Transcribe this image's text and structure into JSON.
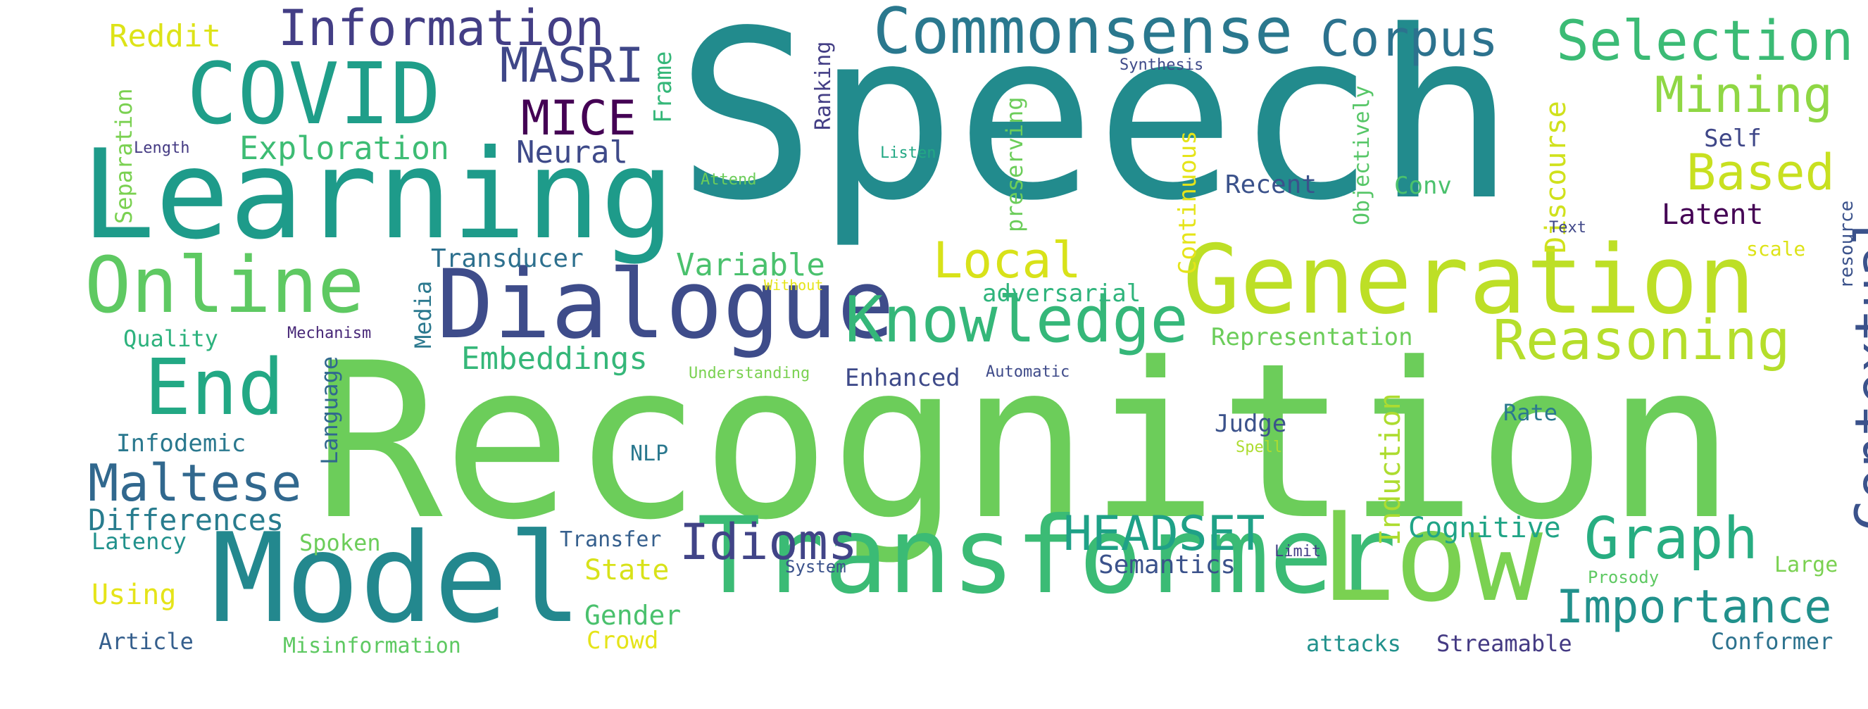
{
  "words": [
    {
      "t": "Speech",
      "c": "#228b8d",
      "v": false
    },
    {
      "t": "Recognition",
      "c": "#6ccd5a",
      "v": false
    },
    {
      "t": "Learning",
      "c": "#1e9b8a",
      "v": false
    },
    {
      "t": "Model",
      "c": "#23888e",
      "v": false
    },
    {
      "t": "Transformer",
      "c": "#3bbb75",
      "v": false
    },
    {
      "t": "Low",
      "c": "#7ad151",
      "v": false
    },
    {
      "t": "Generation",
      "c": "#bddf26",
      "v": false
    },
    {
      "t": "Dialogue",
      "c": "#3e4c8a",
      "v": false
    },
    {
      "t": "Online",
      "c": "#5ec962",
      "v": false
    },
    {
      "t": "COVID",
      "c": "#1f9e89",
      "v": false
    },
    {
      "t": "Commonsense",
      "c": "#2a788e",
      "v": false
    },
    {
      "t": "Knowledge",
      "c": "#35b779",
      "v": false
    },
    {
      "t": "End",
      "c": "#22a884",
      "v": false
    },
    {
      "t": "Information",
      "c": "#433e85",
      "v": false
    },
    {
      "t": "Selection",
      "c": "#3bbb75",
      "v": false
    },
    {
      "t": "Corpus",
      "c": "#2c728e",
      "v": false
    },
    {
      "t": "Mining",
      "c": "#8fd744",
      "v": false
    },
    {
      "t": "Reasoning",
      "c": "#b5de2b",
      "v": false
    },
    {
      "t": "Based",
      "c": "#c8e020",
      "v": false
    },
    {
      "t": "Contextual",
      "c": "#3b528b",
      "v": true
    },
    {
      "t": "Graph",
      "c": "#27ad81",
      "v": false
    },
    {
      "t": "Importance",
      "c": "#21918c",
      "v": false
    },
    {
      "t": "Maltese",
      "c": "#31688e",
      "v": false
    },
    {
      "t": "Idioms",
      "c": "#414487",
      "v": false
    },
    {
      "t": "HEADSET",
      "c": "#1fa187",
      "v": false
    },
    {
      "t": "Local",
      "c": "#d8e219",
      "v": false
    },
    {
      "t": "MASRI",
      "c": "#3f4788",
      "v": false
    },
    {
      "t": "MICE",
      "c": "#440154",
      "v": false
    },
    {
      "t": "Exploration",
      "c": "#3dbc74",
      "v": false
    },
    {
      "t": "Neural",
      "c": "#3e4a89",
      "v": false
    },
    {
      "t": "Embeddings",
      "c": "#35b779",
      "v": false
    },
    {
      "t": "Variable",
      "c": "#4ac16d",
      "v": false
    },
    {
      "t": "Transducer",
      "c": "#2d708e",
      "v": false
    },
    {
      "t": "Differences",
      "c": "#287c8e",
      "v": false
    },
    {
      "t": "Reddit",
      "c": "#dde318",
      "v": false
    },
    {
      "t": "Latent",
      "c": "#440154",
      "v": false
    },
    {
      "t": "Self",
      "c": "#3f4788",
      "v": false
    },
    {
      "t": "Recent",
      "c": "#3b528b",
      "v": false
    },
    {
      "t": "Conv",
      "c": "#4ac16d",
      "v": false
    },
    {
      "t": "Discourse",
      "c": "#d0e11c",
      "v": true
    },
    {
      "t": "Continuous",
      "c": "#e5e419",
      "v": true
    },
    {
      "t": "Objectively",
      "c": "#56c667",
      "v": true
    },
    {
      "t": "preserving",
      "c": "#6ccd5a",
      "v": true
    },
    {
      "t": "Ranking",
      "c": "#433e85",
      "v": true
    },
    {
      "t": "Frame",
      "c": "#35b779",
      "v": true
    },
    {
      "t": "Separation",
      "c": "#7ad151",
      "v": true
    },
    {
      "t": "Induction",
      "c": "#addc30",
      "v": true
    },
    {
      "t": "Language",
      "c": "#31688e",
      "v": true
    },
    {
      "t": "Media",
      "c": "#2a788e",
      "v": true
    },
    {
      "t": "resource",
      "c": "#3b528b",
      "v": true
    },
    {
      "t": "Cognitive",
      "c": "#20a486",
      "v": false
    },
    {
      "t": "State",
      "c": "#d8e219",
      "v": false
    },
    {
      "t": "Gender",
      "c": "#4ac16d",
      "v": false
    },
    {
      "t": "Crowd",
      "c": "#e5e419",
      "v": false
    },
    {
      "t": "Semantics",
      "c": "#3b528b",
      "v": false
    },
    {
      "t": "Enhanced",
      "c": "#3e4a89",
      "v": false
    },
    {
      "t": "Representation",
      "c": "#6ccd5a",
      "v": false
    },
    {
      "t": "adversarial",
      "c": "#2fb47c",
      "v": false
    },
    {
      "t": "Judge",
      "c": "#3b528b",
      "v": false
    },
    {
      "t": "Rate",
      "c": "#2a788e",
      "v": false
    },
    {
      "t": "Infodemic",
      "c": "#2a788e",
      "v": false
    },
    {
      "t": "Quality",
      "c": "#2db27d",
      "v": false
    },
    {
      "t": "Latency",
      "c": "#21918c",
      "v": false
    },
    {
      "t": "Spoken",
      "c": "#6ccd5a",
      "v": false
    },
    {
      "t": "Using",
      "c": "#e5e419",
      "v": false
    },
    {
      "t": "Article",
      "c": "#355f8d",
      "v": false
    },
    {
      "t": "Misinformation",
      "c": "#5ec962",
      "v": false
    },
    {
      "t": "attacks",
      "c": "#21918c",
      "v": false
    },
    {
      "t": "Streamable",
      "c": "#443a83",
      "v": false
    },
    {
      "t": "Conformer",
      "c": "#2c728e",
      "v": false
    },
    {
      "t": "NLP",
      "c": "#2a788e",
      "v": false
    },
    {
      "t": "Transfer",
      "c": "#355f8d",
      "v": false
    },
    {
      "t": "Large",
      "c": "#7ad151",
      "v": false
    },
    {
      "t": "scale",
      "c": "#dde318",
      "v": false
    },
    {
      "t": "Prosody",
      "c": "#5ec962",
      "v": false
    },
    {
      "t": "System",
      "c": "#3b528b",
      "v": false
    },
    {
      "t": "Limit",
      "c": "#433e85",
      "v": false
    },
    {
      "t": "Text",
      "c": "#3f4788",
      "v": false
    },
    {
      "t": "Synthesis",
      "c": "#3e4a89",
      "v": false
    },
    {
      "t": "Listen",
      "c": "#22a884",
      "v": false
    },
    {
      "t": "Attend",
      "c": "#6ccd5a",
      "v": false
    },
    {
      "t": "Length",
      "c": "#443a83",
      "v": false
    },
    {
      "t": "Without",
      "c": "#e5e419",
      "v": false
    },
    {
      "t": "Mechanism",
      "c": "#482878",
      "v": false
    },
    {
      "t": "Understanding",
      "c": "#7ad151",
      "v": false
    },
    {
      "t": "Automatic",
      "c": "#3e4a89",
      "v": false
    },
    {
      "t": "Spell",
      "c": "#addc30",
      "v": false
    }
  ]
}
